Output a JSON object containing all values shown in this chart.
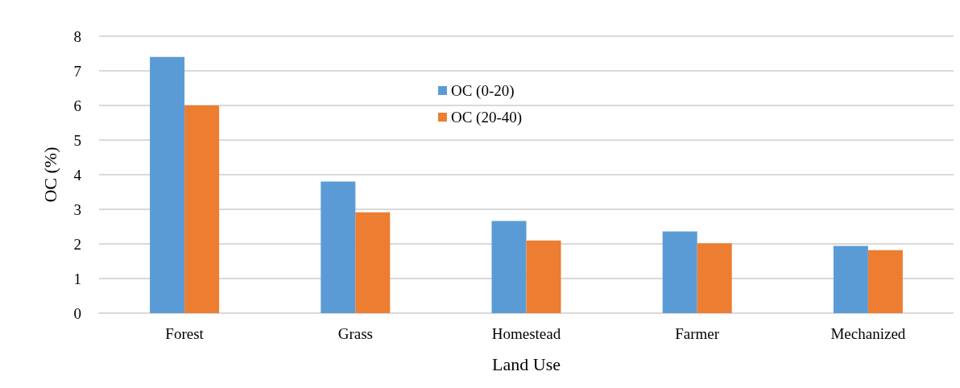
{
  "chart_data": {
    "type": "bar",
    "xlabel": "Land Use",
    "ylabel": "OC (%)",
    "categories": [
      "Forest",
      "Grass",
      "Homestead",
      "Farmer",
      "Mechanized"
    ],
    "series": [
      {
        "name": "OC (0-20)",
        "color": "#5b9bd5",
        "values": [
          7.4,
          3.8,
          2.66,
          2.36,
          1.94
        ]
      },
      {
        "name": "OC (20-40)",
        "color": "#ed7d31",
        "values": [
          6.0,
          2.91,
          2.1,
          2.02,
          1.82
        ]
      }
    ],
    "ylim": [
      0,
      8
    ],
    "yticks": [
      0,
      1,
      2,
      3,
      4,
      5,
      6,
      7,
      8
    ],
    "grid": "y",
    "legend": "top"
  }
}
